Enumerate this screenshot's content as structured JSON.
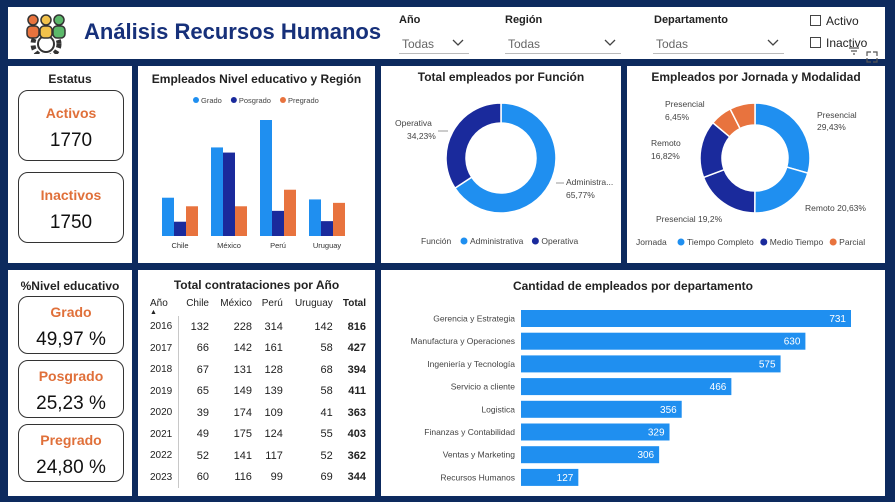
{
  "header": {
    "title": "Análisis Recursos Humanos",
    "filters": [
      {
        "label": "Año",
        "value": "Todas"
      },
      {
        "label": "Región",
        "value": "Todas"
      },
      {
        "label": "Departamento",
        "value": "Todas"
      }
    ],
    "checkboxes": [
      {
        "label": "Activo"
      },
      {
        "label": "Inactivo"
      }
    ]
  },
  "status": {
    "title": "Estatus",
    "activos_label": "Activos",
    "activos_value": "1770",
    "inactivos_label": "Inactivos",
    "inactivos_value": "1750"
  },
  "nivel": {
    "title": "%Nivel educativo",
    "cards": [
      {
        "label": "Grado",
        "value": "49,97 %"
      },
      {
        "label": "Posgrado",
        "value": "25,23 %"
      },
      {
        "label": "Pregrado",
        "value": "24,80 %"
      }
    ]
  },
  "colors": {
    "blue": "#1f8ff0",
    "navy": "#1a2a9c",
    "orange": "#e8733e"
  },
  "chart_data": [
    {
      "type": "bar",
      "title": "Empleados Nivel educativo y Región",
      "categories": [
        "Chile",
        "México",
        "Perú",
        "Uruguay"
      ],
      "series": [
        {
          "name": "Grado",
          "values": [
            67,
            155,
            203,
            64
          ]
        },
        {
          "name": "Posgrado",
          "values": [
            25,
            146,
            44,
            26
          ]
        },
        {
          "name": "Pregrado",
          "values": [
            52,
            52,
            81,
            58
          ]
        }
      ]
    },
    {
      "type": "pie",
      "title": "Total empleados por Función",
      "legend_title": "Función",
      "slices": [
        {
          "name": "Administrativa",
          "label": "Administra...",
          "value": 65.77,
          "pct": "65,77%"
        },
        {
          "name": "Operativa",
          "label": "Operativa",
          "value": 34.23,
          "pct": "34,23%"
        }
      ]
    },
    {
      "type": "pie",
      "title": "Empleados por Jornada y Modalidad",
      "legend_title": "Jornada",
      "legend": [
        "Tiempo Completo",
        "Medio Tiempo",
        "Parcial"
      ],
      "slices": [
        {
          "name": "Presencial",
          "jornada": "Tiempo Completo",
          "value": 29.43,
          "pct": "29,43%"
        },
        {
          "name": "Remoto",
          "jornada": "Tiempo Completo",
          "value": 20.63,
          "pct": "20,63%"
        },
        {
          "name": "Presencial",
          "jornada": "Medio Tiempo",
          "value": 19.2,
          "pct": "19,2%"
        },
        {
          "name": "Remoto",
          "jornada": "Medio Tiempo",
          "value": 16.82,
          "pct": "16,82%"
        },
        {
          "name": "Presencial",
          "jornada": "Parcial",
          "value": 6.45,
          "pct": "6,45%"
        },
        {
          "name": "Remoto",
          "jornada": "Parcial",
          "value": 7.47,
          "pct": ""
        }
      ]
    },
    {
      "type": "table",
      "title": "Total contrataciones por Año",
      "columns": [
        "Año",
        "Chile",
        "México",
        "Perú",
        "Uruguay",
        "Total"
      ],
      "rows": [
        [
          "2016",
          "132",
          "228",
          "314",
          "142",
          "816"
        ],
        [
          "2017",
          "66",
          "142",
          "161",
          "58",
          "427"
        ],
        [
          "2018",
          "67",
          "131",
          "128",
          "68",
          "394"
        ],
        [
          "2019",
          "65",
          "149",
          "139",
          "58",
          "411"
        ],
        [
          "2020",
          "39",
          "174",
          "109",
          "41",
          "363"
        ],
        [
          "2021",
          "49",
          "175",
          "124",
          "55",
          "403"
        ],
        [
          "2022",
          "52",
          "141",
          "117",
          "52",
          "362"
        ],
        [
          "2023",
          "60",
          "116",
          "99",
          "69",
          "344"
        ]
      ]
    },
    {
      "type": "bar",
      "orientation": "horizontal",
      "title": "Cantidad de empleados por departamento",
      "categories": [
        "Gerencia y Estrategia",
        "Manufactura y Operaciones",
        "Ingeniería y Tecnología",
        "Servicio a cliente",
        "Logistica",
        "Finanzas y Contabilidad",
        "Ventas y Marketing",
        "Recursos Humanos"
      ],
      "values": [
        731,
        630,
        575,
        466,
        356,
        329,
        306,
        127
      ]
    }
  ]
}
